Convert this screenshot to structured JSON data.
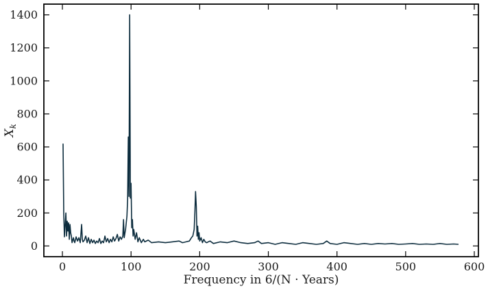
{
  "chart_data": {
    "type": "line",
    "title": "",
    "xlabel": "Frequency in 6/(N · Years)",
    "ylabel": "X_k",
    "ylabel_main": "X",
    "ylabel_sub": "k",
    "xlim": [
      -27,
      606
    ],
    "ylim": [
      -65,
      1465
    ],
    "xticks": [
      0,
      100,
      200,
      300,
      400,
      500,
      600
    ],
    "xtick_labels": [
      "0",
      "100",
      "200",
      "300",
      "400",
      "500",
      "600"
    ],
    "yticks": [
      0,
      200,
      400,
      600,
      800,
      1000,
      1200,
      1400
    ],
    "ytick_labels": [
      "0",
      "200",
      "400",
      "600",
      "800",
      "1000",
      "1200",
      "1400"
    ],
    "grid": false,
    "legend": false,
    "colors": {
      "line": "#0d2d3e",
      "axes": "#000000",
      "text": "#1a1a1a"
    },
    "series": [
      {
        "x": [
          1,
          2,
          3,
          4,
          5,
          6,
          7,
          8,
          9,
          10,
          11,
          12,
          13,
          14,
          15,
          16,
          17,
          18,
          20,
          22,
          24,
          26,
          28,
          29,
          30,
          32,
          34,
          36,
          38,
          40,
          42,
          44,
          46,
          48,
          50,
          52,
          54,
          56,
          58,
          60,
          62,
          64,
          66,
          68,
          70,
          72,
          74,
          76,
          78,
          80,
          82,
          84,
          86,
          88,
          89,
          90,
          92,
          94,
          95,
          96,
          97,
          98,
          99,
          100,
          101,
          102,
          103,
          104,
          106,
          108,
          110,
          112,
          115,
          118,
          120,
          125,
          130,
          140,
          150,
          160,
          170,
          175,
          180,
          185,
          188,
          190,
          192,
          193,
          194,
          195,
          196,
          197,
          198,
          199,
          200,
          202,
          204,
          206,
          208,
          210,
          215,
          220,
          230,
          240,
          250,
          260,
          270,
          280,
          285,
          290,
          300,
          310,
          320,
          330,
          340,
          350,
          360,
          370,
          380,
          385,
          390,
          400,
          410,
          420,
          430,
          440,
          450,
          460,
          470,
          480,
          490,
          500,
          510,
          520,
          530,
          540,
          550,
          560,
          570,
          577
        ],
        "values": [
          620,
          200,
          55,
          120,
          200,
          60,
          150,
          90,
          140,
          40,
          130,
          80,
          60,
          20,
          35,
          50,
          30,
          20,
          55,
          30,
          50,
          20,
          130,
          40,
          25,
          35,
          60,
          20,
          50,
          15,
          40,
          20,
          35,
          15,
          30,
          20,
          45,
          15,
          30,
          20,
          60,
          25,
          45,
          20,
          40,
          25,
          55,
          30,
          45,
          70,
          30,
          55,
          40,
          60,
          160,
          50,
          100,
          180,
          280,
          660,
          300,
          1400,
          290,
          380,
          110,
          160,
          60,
          100,
          40,
          80,
          25,
          50,
          20,
          40,
          25,
          35,
          20,
          25,
          20,
          25,
          30,
          20,
          25,
          30,
          50,
          60,
          100,
          200,
          330,
          240,
          60,
          120,
          40,
          80,
          30,
          50,
          20,
          40,
          25,
          20,
          30,
          15,
          25,
          20,
          30,
          20,
          15,
          20,
          30,
          15,
          20,
          10,
          20,
          15,
          10,
          20,
          15,
          10,
          15,
          30,
          15,
          10,
          20,
          15,
          10,
          15,
          10,
          15,
          12,
          15,
          10,
          12,
          15,
          10,
          12,
          10,
          15,
          10,
          12,
          10
        ]
      }
    ]
  }
}
